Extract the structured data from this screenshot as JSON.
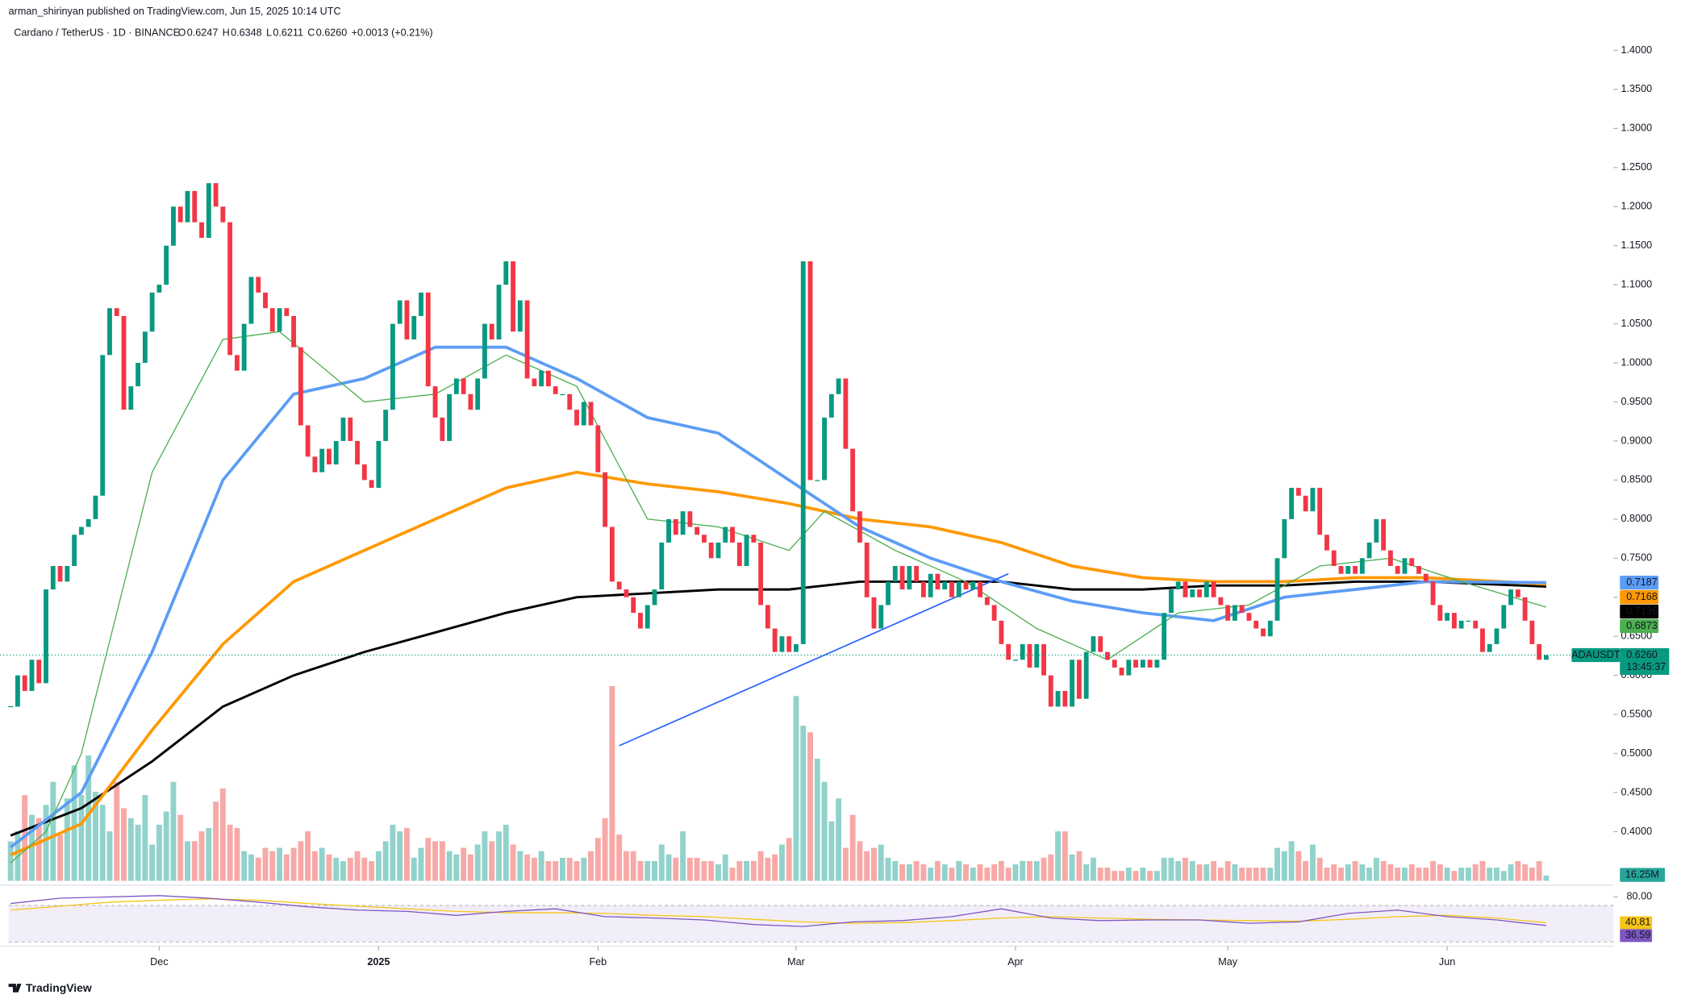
{
  "header": {
    "publisher": "arman_shirinyan published on TradingView.com, Jun 15, 2025 10:14 UTC",
    "symbol": "Cardano / TetherUS · 1D · BINANCE",
    "ohlc": [
      {
        "key": "O",
        "value": "0.6247"
      },
      {
        "key": "H",
        "value": "0.6348"
      },
      {
        "key": "L",
        "value": "0.6211"
      },
      {
        "key": "C",
        "value": "0.6260"
      }
    ],
    "change": "+0.0013 (+0.21%)"
  },
  "footer": {
    "brand": "TradingView"
  },
  "chart_data": {
    "type": "candlestick",
    "xlim": [
      -1.5,
      226.5
    ],
    "xticks": [
      {
        "value": 21,
        "label": "Dec"
      },
      {
        "value": 52,
        "label": "2025"
      },
      {
        "value": 83,
        "label": "Feb"
      },
      {
        "value": 111,
        "label": "Mar"
      },
      {
        "value": 142,
        "label": "Apr"
      },
      {
        "value": 172,
        "label": "May"
      },
      {
        "value": 203,
        "label": "Jun"
      }
    ],
    "ylim": [
      0.337,
      1.4096
    ],
    "yticks": [
      {
        "value": 0.4,
        "label": "0.4000"
      },
      {
        "value": 0.45,
        "label": "0.4500"
      },
      {
        "value": 0.5,
        "label": "0.5000"
      },
      {
        "value": 0.55,
        "label": "0.5500"
      },
      {
        "value": 0.6,
        "label": "0.6000"
      },
      {
        "value": 0.65,
        "label": "0.6500"
      },
      {
        "value": 0.7,
        "label": "0.7000"
      },
      {
        "value": 0.75,
        "label": "0.7500"
      },
      {
        "value": 0.8,
        "label": "0.8000"
      },
      {
        "value": 0.85,
        "label": "0.8500"
      },
      {
        "value": 0.9,
        "label": "0.9000"
      },
      {
        "value": 0.95,
        "label": "0.9500"
      },
      {
        "value": 1.0,
        "label": "1.0000"
      },
      {
        "value": 1.05,
        "label": "1.0500"
      },
      {
        "value": 1.1,
        "label": "1.1000"
      },
      {
        "value": 1.15,
        "label": "1.1500"
      },
      {
        "value": 1.2,
        "label": "1.2000"
      },
      {
        "value": 1.25,
        "label": "1.2500"
      },
      {
        "value": 1.3,
        "label": "1.3000"
      },
      {
        "value": 1.35,
        "label": "1.3500"
      },
      {
        "value": 1.4,
        "label": "1.4000"
      }
    ],
    "up_color": "#089981",
    "down_color": "#f23645",
    "close": [
      0.56,
      0.6,
      0.58,
      0.62,
      0.59,
      0.71,
      0.74,
      0.72,
      0.74,
      0.78,
      0.79,
      0.8,
      0.83,
      1.01,
      1.07,
      1.06,
      0.94,
      0.97,
      1.0,
      1.04,
      1.09,
      1.1,
      1.15,
      1.2,
      1.18,
      1.22,
      1.18,
      1.16,
      1.23,
      1.2,
      1.18,
      1.01,
      0.99,
      1.05,
      1.11,
      1.09,
      1.07,
      1.04,
      1.07,
      1.06,
      1.02,
      0.92,
      0.88,
      0.86,
      0.89,
      0.87,
      0.9,
      0.93,
      0.9,
      0.87,
      0.85,
      0.84,
      0.9,
      0.94,
      1.05,
      1.08,
      1.03,
      1.06,
      1.09,
      0.97,
      0.93,
      0.9,
      0.96,
      0.98,
      0.96,
      0.94,
      0.98,
      1.05,
      1.03,
      1.1,
      1.13,
      1.04,
      1.08,
      0.98,
      0.97,
      0.99,
      0.97,
      0.96,
      0.96,
      0.94,
      0.92,
      0.95,
      0.92,
      0.86,
      0.79,
      0.72,
      0.71,
      0.7,
      0.68,
      0.66,
      0.69,
      0.71,
      0.77,
      0.8,
      0.78,
      0.81,
      0.79,
      0.78,
      0.77,
      0.75,
      0.77,
      0.79,
      0.77,
      0.74,
      0.78,
      0.77,
      0.69,
      0.66,
      0.63,
      0.65,
      0.63,
      0.64,
      1.13,
      0.85,
      0.85,
      0.93,
      0.96,
      0.98,
      0.89,
      0.81,
      0.77,
      0.7,
      0.66,
      0.69,
      0.72,
      0.74,
      0.71,
      0.74,
      0.72,
      0.7,
      0.73,
      0.71,
      0.72,
      0.7,
      0.72,
      0.71,
      0.72,
      0.7,
      0.69,
      0.67,
      0.64,
      0.62,
      0.62,
      0.64,
      0.61,
      0.64,
      0.6,
      0.56,
      0.58,
      0.56,
      0.62,
      0.57,
      0.63,
      0.65,
      0.63,
      0.62,
      0.61,
      0.6,
      0.62,
      0.61,
      0.62,
      0.61,
      0.62,
      0.68,
      0.71,
      0.72,
      0.7,
      0.71,
      0.7,
      0.72,
      0.7,
      0.69,
      0.67,
      0.69,
      0.68,
      0.67,
      0.66,
      0.65,
      0.67,
      0.75,
      0.8,
      0.84,
      0.83,
      0.81,
      0.84,
      0.78,
      0.76,
      0.74,
      0.73,
      0.74,
      0.73,
      0.75,
      0.77,
      0.8,
      0.76,
      0.74,
      0.73,
      0.75,
      0.74,
      0.73,
      0.72,
      0.69,
      0.67,
      0.68,
      0.66,
      0.67,
      0.67,
      0.66,
      0.63,
      0.64,
      0.66,
      0.69,
      0.71,
      0.7,
      0.67,
      0.64,
      0.62,
      0.626
    ],
    "volume": {
      "ylim": [
        0,
        1000
      ],
      "up_color": "#92d2cc",
      "down_color": "#f7a9a7",
      "values": [
        120,
        150,
        260,
        200,
        190,
        230,
        300,
        140,
        250,
        350,
        260,
        380,
        270,
        230,
        150,
        300,
        220,
        190,
        170,
        260,
        110,
        170,
        210,
        300,
        200,
        120,
        120,
        150,
        160,
        240,
        280,
        170,
        160,
        90,
        80,
        70,
        100,
        90,
        100,
        80,
        100,
        120,
        150,
        90,
        100,
        80,
        70,
        60,
        70,
        90,
        70,
        60,
        90,
        120,
        170,
        150,
        160,
        70,
        100,
        130,
        120,
        120,
        90,
        80,
        100,
        80,
        110,
        150,
        120,
        150,
        170,
        110,
        90,
        80,
        70,
        90,
        60,
        60,
        70,
        70,
        60,
        70,
        90,
        130,
        190,
        590,
        140,
        90,
        90,
        60,
        60,
        60,
        110,
        80,
        70,
        150,
        70,
        70,
        60,
        60,
        50,
        80,
        40,
        60,
        60,
        60,
        90,
        70,
        80,
        110,
        130,
        560,
        470,
        450,
        370,
        300,
        180,
        250,
        100,
        200,
        120,
        90,
        100,
        110,
        70,
        60,
        50,
        50,
        60,
        50,
        40,
        60,
        50,
        40,
        60,
        50,
        40,
        50,
        40,
        50,
        60,
        40,
        50,
        60,
        60,
        60,
        70,
        80,
        150,
        150,
        80,
        90,
        50,
        70,
        40,
        40,
        30,
        30,
        40,
        30,
        40,
        30,
        30,
        70,
        70,
        60,
        70,
        60,
        50,
        50,
        60,
        40,
        60,
        50,
        40,
        40,
        40,
        40,
        40,
        100,
        90,
        120,
        90,
        60,
        110,
        70,
        40,
        50,
        40,
        50,
        60,
        50,
        40,
        70,
        60,
        50,
        40,
        40,
        50,
        40,
        40,
        60,
        50,
        40,
        30,
        40,
        40,
        50,
        60,
        40,
        40,
        30,
        50,
        60,
        50,
        40,
        60,
        16.25
      ],
      "last": {
        "value": 16.25,
        "label": "16.25M"
      },
      "tag_color": "#26a69a"
    },
    "series": [
      {
        "color": "#000000",
        "width": 2.2,
        "last": 0.7136,
        "x": [
          0,
          10,
          20,
          30,
          40,
          50,
          60,
          70,
          80,
          90,
          100,
          110,
          120,
          130,
          140,
          150,
          160,
          170,
          180,
          190,
          200,
          217
        ],
        "values": [
          0.395,
          0.43,
          0.49,
          0.56,
          0.6,
          0.63,
          0.655,
          0.68,
          0.7,
          0.705,
          0.71,
          0.71,
          0.72,
          0.72,
          0.72,
          0.71,
          0.71,
          0.715,
          0.715,
          0.72,
          0.72,
          0.7136
        ]
      },
      {
        "color": "#ff9800",
        "width": 2.8,
        "last": 0.7168,
        "x": [
          0,
          10,
          20,
          30,
          40,
          50,
          60,
          70,
          80,
          90,
          100,
          110,
          120,
          130,
          140,
          150,
          160,
          170,
          180,
          190,
          200,
          217
        ],
        "values": [
          0.37,
          0.41,
          0.53,
          0.64,
          0.72,
          0.76,
          0.8,
          0.84,
          0.86,
          0.845,
          0.835,
          0.82,
          0.8,
          0.79,
          0.77,
          0.74,
          0.725,
          0.72,
          0.72,
          0.725,
          0.725,
          0.7168
        ]
      },
      {
        "color": "#5b9cf6",
        "width": 2.8,
        "last": 0.7187,
        "x": [
          0,
          10,
          20,
          30,
          40,
          50,
          60,
          70,
          80,
          90,
          100,
          110,
          120,
          130,
          140,
          150,
          160,
          170,
          180,
          190,
          200,
          217
        ],
        "values": [
          0.38,
          0.45,
          0.63,
          0.85,
          0.96,
          0.98,
          1.02,
          1.02,
          0.98,
          0.93,
          0.91,
          0.85,
          0.79,
          0.75,
          0.72,
          0.695,
          0.68,
          0.67,
          0.7,
          0.71,
          0.72,
          0.7187
        ]
      },
      {
        "color": "#4caf50",
        "width": 1,
        "last": 0.6873,
        "x": [
          0,
          5,
          10,
          20,
          30,
          38,
          50,
          60,
          70,
          80,
          90,
          100,
          110,
          115,
          125,
          135,
          145,
          155,
          165,
          175,
          185,
          195,
          205,
          217
        ],
        "values": [
          0.36,
          0.4,
          0.5,
          0.86,
          1.03,
          1.04,
          0.95,
          0.96,
          1.01,
          0.97,
          0.8,
          0.79,
          0.76,
          0.81,
          0.76,
          0.72,
          0.66,
          0.62,
          0.68,
          0.69,
          0.74,
          0.75,
          0.72,
          0.6873
        ]
      }
    ],
    "trendline": {
      "color": "#2962ff",
      "x": [
        86,
        141
      ],
      "values": [
        0.51,
        0.73
      ]
    },
    "last_price": {
      "value": 0.626,
      "label": "0.6260",
      "symbol": "ADAUSDT",
      "countdown": "13:45:37",
      "color": "#089981"
    },
    "rsi": {
      "ylim": [
        10,
        86.5
      ],
      "yticks": [
        {
          "value": 80,
          "label": "80.00"
        }
      ],
      "color": "#7e57c2",
      "ma_color": "#f5c518",
      "x": [
        0,
        7,
        14,
        21,
        28,
        35,
        42,
        49,
        56,
        63,
        70,
        77,
        84,
        91,
        98,
        105,
        112,
        119,
        126,
        133,
        140,
        147,
        154,
        161,
        168,
        175,
        182,
        189,
        196,
        203,
        210,
        217
      ],
      "values": [
        70,
        78,
        80,
        82,
        78,
        72,
        65,
        60,
        58,
        52,
        58,
        62,
        50,
        48,
        45,
        38,
        35,
        42,
        44,
        50,
        62,
        48,
        44,
        45,
        45,
        40,
        42,
        55,
        60,
        50,
        45,
        36.59
      ],
      "ma_values": [
        60,
        66,
        72,
        75,
        77,
        75,
        70,
        66,
        62,
        58,
        56,
        56,
        55,
        52,
        50,
        46,
        42,
        40,
        41,
        44,
        48,
        50,
        48,
        46,
        45,
        44,
        43,
        46,
        50,
        52,
        48,
        40.81
      ],
      "last": {
        "value": 36.59,
        "label": "36.59"
      },
      "ma_last": {
        "value": 40.81,
        "label": "40.81"
      }
    }
  }
}
